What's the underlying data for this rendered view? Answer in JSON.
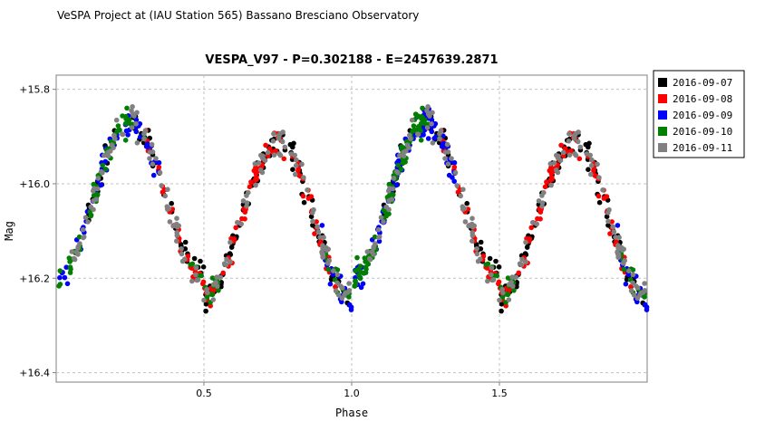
{
  "header": {
    "text": "VeSPA Project at (IAU Station 565) Bassano Bresciano Observatory"
  },
  "chart_data": {
    "type": "scatter",
    "title": "VESPA_V97  -  P=0.302188  -  E=2457639.2871",
    "xlabel": "Phase",
    "ylabel": "Mag",
    "xlim": [
      0.0,
      2.0
    ],
    "ylim": [
      16.42,
      15.77
    ],
    "y_inverted": true,
    "x_ticks": [
      {
        "value": 0.5,
        "label": "0.5"
      },
      {
        "value": 1.0,
        "label": "1.0"
      },
      {
        "value": 1.5,
        "label": "1.5"
      }
    ],
    "y_ticks": [
      {
        "value": 15.8,
        "label": "+15.8"
      },
      {
        "value": 16.0,
        "label": "+16.0"
      },
      {
        "value": 16.2,
        "label": "+16.2"
      },
      {
        "value": 16.4,
        "label": "+16.4"
      }
    ],
    "grid": true,
    "legend_position": "right",
    "light_curve": {
      "phase_max1": 0.25,
      "mag_max1": 15.87,
      "phase_min1": 0.5,
      "mag_min1": 16.2,
      "phase_max2": 0.75,
      "mag_max2": 15.91,
      "phase_min2": 1.0,
      "mag_min2": 16.24
    },
    "series": [
      {
        "name": "2016-09-07",
        "color": "#000000",
        "phase_ranges": [
          [
            0.1,
            0.2
          ],
          [
            0.25,
            0.6
          ],
          [
            0.6,
            0.9
          ],
          [
            0.9,
            1.0
          ]
        ]
      },
      {
        "name": "2016-09-08",
        "color": "#ff0000",
        "phase_ranges": [
          [
            0.3,
            0.8
          ],
          [
            0.8,
            0.95
          ]
        ]
      },
      {
        "name": "2016-09-09",
        "color": "#0000ff",
        "phase_ranges": [
          [
            0.9,
            1.35
          ],
          [
            0.0,
            0.35
          ]
        ]
      },
      {
        "name": "2016-09-10",
        "color": "#007f00",
        "phase_ranges": [
          [
            0.9,
            1.25
          ],
          [
            0.0,
            0.3
          ],
          [
            0.45,
            0.55
          ]
        ]
      },
      {
        "name": "2016-09-11",
        "color": "#808080",
        "phase_ranges": [
          [
            0.05,
            0.5
          ],
          [
            0.5,
            1.0
          ]
        ]
      }
    ]
  }
}
